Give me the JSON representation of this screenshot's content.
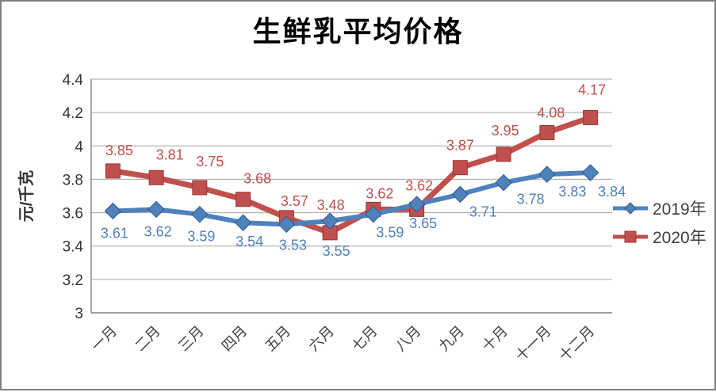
{
  "chart_data": {
    "type": "line",
    "title": "生鲜乳平均价格",
    "ylabel": "元/千克",
    "xlabel": "",
    "categories": [
      "一月",
      "二月",
      "三月",
      "四月",
      "五月",
      "六月",
      "七月",
      "八月",
      "九月",
      "十月",
      "十一月",
      "十二月"
    ],
    "series": [
      {
        "name": "2019年",
        "color": "#4F81BD",
        "marker": "diamond",
        "marker_stroke": "#2E5A88",
        "label_position": "below",
        "values": [
          3.61,
          3.62,
          3.59,
          3.54,
          3.53,
          3.55,
          3.59,
          3.65,
          3.71,
          3.78,
          3.83,
          3.84
        ]
      },
      {
        "name": "2020年",
        "color": "#C0504D",
        "marker": "square",
        "marker_stroke": "#953735",
        "label_position": "above",
        "values": [
          3.85,
          3.81,
          3.75,
          3.68,
          3.57,
          3.48,
          3.62,
          3.62,
          3.87,
          3.95,
          4.08,
          4.17
        ]
      }
    ],
    "ylim": [
      3,
      4.4
    ],
    "ytick_step": 0.2,
    "ytick_labels": [
      "3",
      "3.2",
      "3.4",
      "3.6",
      "3.8",
      "4",
      "4.2",
      "4.4"
    ],
    "grid": true,
    "legend_position": "right",
    "colors": {
      "gridline": "#A6A6A6",
      "axis": "#808080",
      "tick_text": "#333333",
      "category_text": "#404040",
      "legend_text": "#404040",
      "title_text": "#000000",
      "frame_border": "#808080"
    }
  }
}
